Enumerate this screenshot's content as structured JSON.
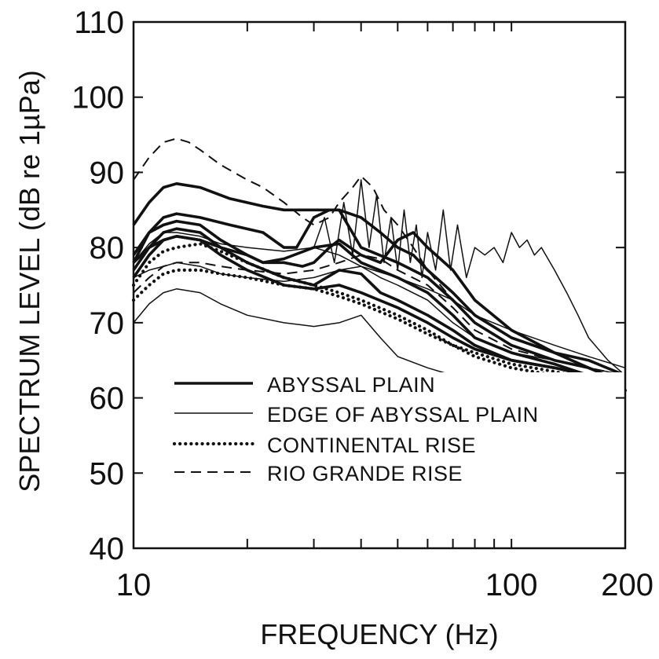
{
  "chart_data": {
    "type": "line",
    "xlabel": "FREQUENCY (Hz)",
    "ylabel": "SPECTRUM LEVEL (dB re 1µPa)",
    "x_scale": "log",
    "xlim": [
      10,
      200
    ],
    "ylim": [
      40,
      110
    ],
    "xtick_labels": [
      {
        "x": 10,
        "label": "10"
      },
      {
        "x": 100,
        "label": "100"
      },
      {
        "x": 200,
        "label": "200"
      }
    ],
    "ytick_labels": [
      {
        "y": 40,
        "label": "40"
      },
      {
        "y": 50,
        "label": "50"
      },
      {
        "y": 60,
        "label": "60"
      },
      {
        "y": 70,
        "label": "70"
      },
      {
        "y": 80,
        "label": "80"
      },
      {
        "y": 90,
        "label": "90"
      },
      {
        "y": 100,
        "label": "100"
      },
      {
        "y": 110,
        "label": "110"
      }
    ],
    "grid": false,
    "legend_position": "bottom-left",
    "legend": [
      {
        "label": "ABYSSAL PLAIN",
        "style": "thick-solid"
      },
      {
        "label": "EDGE OF ABYSSAL PLAIN",
        "style": "thin-solid"
      },
      {
        "label": "CONTINENTAL RISE",
        "style": "dotted"
      },
      {
        "label": "RIO GRANDE RISE",
        "style": "dashed"
      }
    ],
    "series": [
      {
        "group": "ABYSSAL PLAIN",
        "x": [
          10,
          11,
          12,
          13,
          15,
          18,
          22,
          25,
          30,
          35,
          40,
          50,
          60,
          70,
          80,
          100,
          130,
          160,
          200
        ],
        "y": [
          83,
          86,
          88,
          88.5,
          88,
          86.5,
          85.5,
          85,
          85,
          85,
          80,
          78,
          76,
          73,
          70,
          67,
          65,
          64,
          62
        ]
      },
      {
        "group": "ABYSSAL PLAIN",
        "x": [
          10,
          11,
          12,
          13,
          15,
          18,
          22,
          25,
          27,
          30,
          33,
          35,
          40,
          45,
          50,
          55,
          60,
          70,
          80,
          100,
          130,
          160,
          200
        ],
        "y": [
          78,
          82,
          84,
          84.5,
          84,
          83,
          82,
          80,
          80,
          84,
          85,
          85,
          84,
          82,
          80,
          79,
          77,
          74,
          71,
          68,
          66,
          65,
          63
        ]
      },
      {
        "group": "ABYSSAL PLAIN",
        "x": [
          10,
          11,
          12,
          13,
          15,
          17,
          20,
          22,
          25,
          28,
          30,
          33,
          35,
          40,
          45,
          50,
          55,
          60,
          70,
          80,
          100,
          130,
          160,
          200
        ],
        "y": [
          79,
          82,
          83,
          83.5,
          83,
          81,
          79,
          78,
          78,
          77.5,
          78,
          80,
          81,
          79,
          78,
          81,
          82,
          80,
          77,
          73,
          69,
          66,
          64,
          62
        ]
      },
      {
        "group": "ABYSSAL PLAIN",
        "x": [
          10,
          11,
          12,
          13,
          15,
          17,
          20,
          25,
          30,
          35,
          40,
          45,
          50,
          60,
          70,
          80,
          100,
          130,
          160,
          200
        ],
        "y": [
          77,
          80,
          82,
          82.5,
          82,
          80,
          78,
          76,
          75,
          77,
          76.5,
          74,
          73,
          71,
          69,
          67,
          65,
          64,
          63,
          61
        ]
      },
      {
        "group": "ABYSSAL PLAIN",
        "x": [
          10,
          11,
          12,
          13,
          15,
          17,
          20,
          25,
          30,
          35,
          40,
          50,
          60,
          70,
          80,
          100,
          130,
          160,
          200
        ],
        "y": [
          76,
          79,
          81,
          81.5,
          81,
          79,
          77,
          75,
          74.5,
          75,
          74,
          72,
          70,
          68,
          66.5,
          65,
          64,
          63,
          60
        ]
      },
      {
        "group": "ABYSSAL PLAIN",
        "x": [
          10,
          11,
          12,
          13,
          15,
          17,
          20,
          22,
          25,
          30,
          35,
          40,
          50,
          60,
          70,
          80,
          100,
          130,
          160,
          200
        ],
        "y": [
          78,
          80,
          81,
          81.5,
          81,
          80,
          79,
          78,
          78.5,
          80,
          80.5,
          78,
          76,
          74,
          71,
          68,
          66,
          64.5,
          63,
          61
        ]
      },
      {
        "group": "EDGE OF ABYSSAL PLAIN",
        "x": [
          10,
          11,
          12,
          13,
          15,
          17,
          20,
          25,
          30,
          35,
          40,
          45,
          50,
          60,
          70,
          80,
          100
        ],
        "y": [
          70,
          72.5,
          74,
          74.5,
          74,
          72.5,
          71,
          70,
          69.5,
          70,
          71,
          68,
          65.5,
          64,
          63,
          62.5,
          62
        ]
      },
      {
        "group": "EDGE OF ABYSSAL PLAIN",
        "x": [
          10,
          11,
          12,
          13,
          15,
          17,
          20,
          25,
          30,
          35,
          40,
          45,
          50,
          60,
          70,
          80,
          100,
          130,
          160,
          200
        ],
        "y": [
          76,
          77,
          77.5,
          78,
          77.5,
          76.5,
          76,
          75.5,
          76,
          77,
          77.5,
          76,
          75,
          73,
          70,
          68,
          66,
          65,
          64,
          63
        ]
      },
      {
        "group": "EDGE OF ABYSSAL PLAIN",
        "x": [
          30,
          32,
          34,
          36,
          38,
          40,
          42,
          44,
          46,
          48,
          50,
          52,
          54,
          56,
          58,
          60,
          63,
          66,
          69,
          72,
          76,
          80,
          85,
          90,
          95,
          100,
          105,
          110,
          115,
          120,
          130,
          140,
          150,
          160,
          180,
          200
        ],
        "y": [
          80,
          84,
          78,
          86,
          79,
          89,
          80,
          87,
          78,
          84,
          77,
          85,
          78,
          83,
          76,
          82,
          77,
          85,
          77,
          83,
          76,
          80,
          79,
          80,
          78,
          82,
          80,
          81,
          79,
          80,
          77,
          74,
          71,
          68,
          65,
          63
        ]
      },
      {
        "group": "EDGE OF ABYSSAL PLAIN",
        "x": [
          10,
          11,
          12,
          13,
          15,
          17,
          20,
          25,
          30,
          35,
          40,
          50,
          60,
          70,
          80,
          100,
          130,
          160,
          200
        ],
        "y": [
          78,
          80.5,
          82,
          82,
          81.5,
          80.5,
          80,
          79.5,
          80,
          79,
          77.5,
          76,
          74.5,
          73,
          71,
          69,
          67,
          65.5,
          64
        ]
      },
      {
        "group": "CONTINENTAL RISE",
        "x": [
          10,
          11,
          12,
          13,
          15,
          17,
          20,
          25,
          30,
          35,
          40,
          50,
          60,
          70,
          80,
          100,
          130,
          160,
          200
        ],
        "y": [
          75,
          78,
          79.5,
          80,
          80.5,
          79.5,
          78,
          76,
          75,
          74,
          73,
          71,
          69,
          67,
          65.5,
          64,
          63,
          62,
          61
        ]
      },
      {
        "group": "CONTINENTAL RISE",
        "x": [
          10,
          11,
          12,
          13,
          15,
          17,
          20,
          25,
          30,
          35,
          40,
          50,
          60,
          70,
          80,
          100,
          130,
          160,
          200
        ],
        "y": [
          73,
          75,
          76.5,
          77,
          77,
          76.5,
          76,
          75,
          74.5,
          73.5,
          72.5,
          70.5,
          68.5,
          67,
          66,
          64.5,
          63.5,
          62.5,
          61
        ]
      },
      {
        "group": "RIO GRANDE RISE",
        "x": [
          10,
          11,
          12,
          13,
          14,
          15,
          17,
          20,
          22,
          25,
          28,
          30,
          33,
          35,
          38,
          40,
          43,
          46,
          50,
          55,
          60,
          70,
          80,
          100,
          130,
          160,
          200
        ],
        "y": [
          89,
          92,
          94,
          94.5,
          94,
          93,
          91,
          89,
          88,
          86,
          84,
          83,
          84,
          86,
          88,
          89.5,
          88,
          85,
          83,
          80,
          77,
          73,
          70,
          67,
          65,
          64,
          63
        ]
      },
      {
        "group": "RIO GRANDE RISE",
        "x": [
          10,
          11,
          12,
          13,
          15,
          17,
          20,
          25,
          30,
          35,
          40,
          45,
          50,
          60,
          70,
          80,
          100,
          130,
          160,
          200
        ],
        "y": [
          74,
          76,
          77.5,
          78,
          78,
          77.5,
          77,
          76.5,
          77,
          78,
          79,
          78.5,
          77,
          75,
          72,
          69,
          66.5,
          65,
          64,
          62
        ]
      }
    ]
  }
}
